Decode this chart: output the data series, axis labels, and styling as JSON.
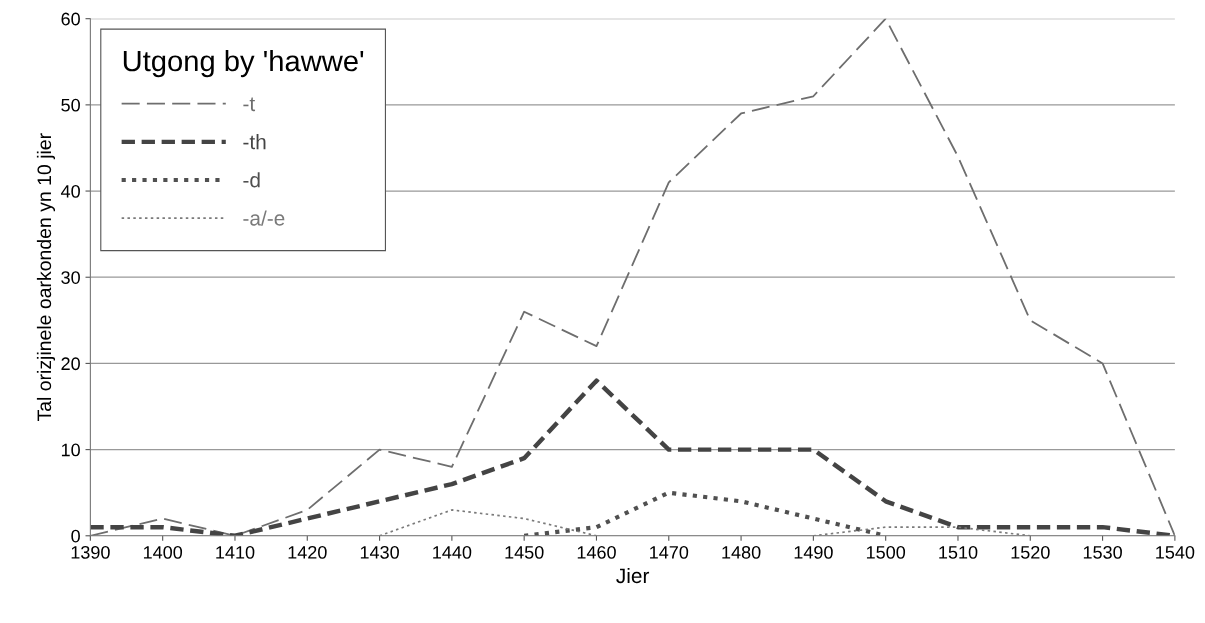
{
  "chart_data": {
    "type": "line",
    "xlabel": "Jier",
    "ylabel": "Tal orizjinele oarkonden yn 10 jier",
    "legend_title": "Utgong by 'hawwe'",
    "x": [
      1390,
      1400,
      1410,
      1420,
      1430,
      1440,
      1450,
      1460,
      1470,
      1480,
      1490,
      1500,
      1510,
      1520,
      1530,
      1540
    ],
    "series": [
      {
        "name": "-t",
        "color": "#6e6e6e",
        "line_style": "dashed",
        "values": [
          0,
          2,
          0,
          3,
          10,
          8,
          26,
          22,
          41,
          49,
          51,
          60,
          44,
          25,
          20,
          0
        ]
      },
      {
        "name": "-th",
        "color": "#444444",
        "line_style": "dashed",
        "values": [
          1,
          1,
          0,
          2,
          4,
          6,
          9,
          18,
          10,
          10,
          10,
          4,
          1,
          1,
          1,
          0
        ]
      },
      {
        "name": "-d",
        "color": "#505050",
        "line_style": "dotted",
        "values": [
          null,
          null,
          null,
          null,
          null,
          null,
          0,
          1,
          5,
          4,
          2,
          0,
          null,
          null,
          null,
          null
        ]
      },
      {
        "name": "-a/-e",
        "color": "#7a7a7a",
        "line_style": "dotted",
        "values": [
          null,
          null,
          null,
          null,
          0,
          3,
          2,
          0,
          null,
          null,
          0,
          1,
          1,
          0,
          null,
          null
        ]
      }
    ],
    "xlim": [
      1390,
      1540
    ],
    "ylim": [
      0,
      60
    ],
    "xticks": [
      1390,
      1400,
      1410,
      1420,
      1430,
      1440,
      1450,
      1460,
      1470,
      1480,
      1490,
      1500,
      1510,
      1520,
      1530,
      1540
    ],
    "yticks": [
      0,
      10,
      20,
      30,
      40,
      50,
      60
    ],
    "grid": "y",
    "legend": "top left",
    "marker": "none"
  }
}
